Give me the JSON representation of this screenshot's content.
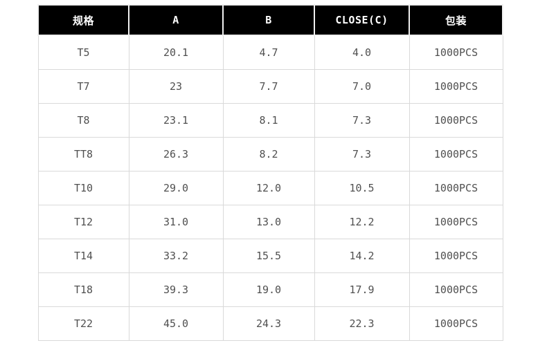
{
  "table": {
    "columns": [
      {
        "label": "规格"
      },
      {
        "label": "A"
      },
      {
        "label": "B"
      },
      {
        "label": "CLOSE(C)"
      },
      {
        "label": "包装"
      }
    ],
    "rows": [
      [
        "T5",
        "20.1",
        "4.7",
        "4.0",
        "1000PCS"
      ],
      [
        "T7",
        "23",
        "7.7",
        "7.0",
        "1000PCS"
      ],
      [
        "T8",
        "23.1",
        "8.1",
        "7.3",
        "1000PCS"
      ],
      [
        "TT8",
        "26.3",
        "8.2",
        "7.3",
        "1000PCS"
      ],
      [
        "T10",
        "29.0",
        "12.0",
        "10.5",
        "1000PCS"
      ],
      [
        "T12",
        "31.0",
        "13.0",
        "12.2",
        "1000PCS"
      ],
      [
        "T14",
        "33.2",
        "15.5",
        "14.2",
        "1000PCS"
      ],
      [
        "T18",
        "39.3",
        "19.0",
        "17.9",
        "1000PCS"
      ],
      [
        "T22",
        "45.0",
        "24.3",
        "22.3",
        "1000PCS"
      ]
    ]
  },
  "colors": {
    "header_bg": "#000000",
    "header_text": "#ffffff",
    "body_text": "#505050",
    "grid_border": "#d9d9d9",
    "page_bg": "#ffffff"
  }
}
